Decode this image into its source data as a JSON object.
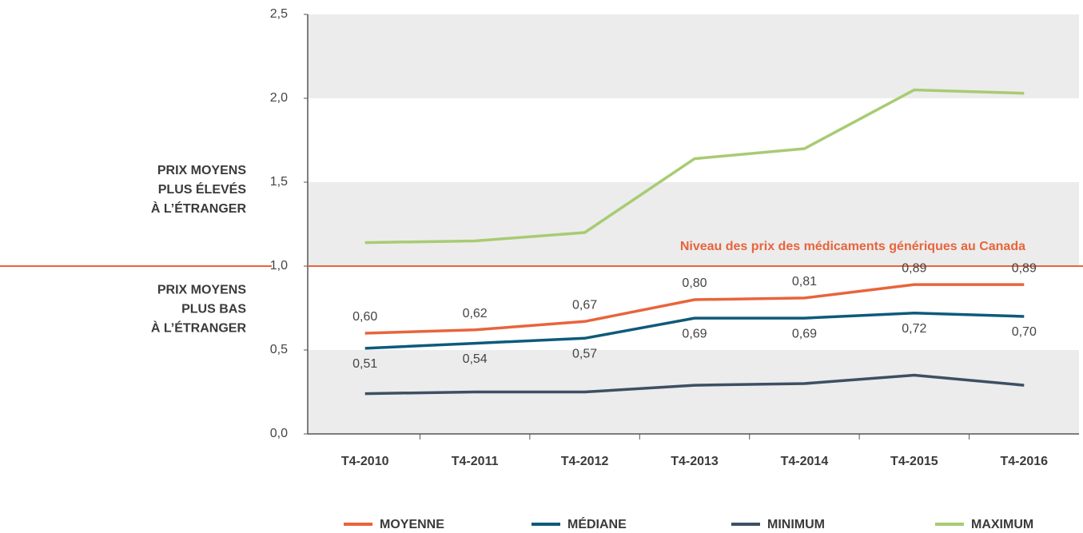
{
  "chart_data": {
    "type": "line",
    "categories": [
      "T4-2010",
      "T4-2011",
      "T4-2012",
      "T4-2013",
      "T4-2014",
      "T4-2015",
      "T4-2016"
    ],
    "series": [
      {
        "name": "MOYENNE",
        "color": "#e8643c",
        "values": [
          0.6,
          0.62,
          0.67,
          0.8,
          0.81,
          0.89,
          0.89
        ],
        "value_labels": [
          "0,60",
          "0,62",
          "0,67",
          "0,80",
          "0,81",
          "0,89",
          "0,89"
        ]
      },
      {
        "name": "MÉDIANE",
        "color": "#0e5a7a",
        "values": [
          0.51,
          0.54,
          0.57,
          0.69,
          0.69,
          0.72,
          0.7
        ],
        "value_labels": [
          "0,51",
          "0,54",
          "0,57",
          "0,69",
          "0,69",
          "0,72",
          "0,70"
        ]
      },
      {
        "name": "MINIMUM",
        "color": "#3d4f63",
        "values": [
          0.24,
          0.25,
          0.25,
          0.29,
          0.3,
          0.35,
          0.29
        ]
      },
      {
        "name": "MAXIMUM",
        "color": "#a8cb73",
        "values": [
          1.14,
          1.15,
          1.2,
          1.64,
          1.7,
          2.05,
          2.03
        ]
      }
    ],
    "ylim": [
      0,
      2.5
    ],
    "yticks": [
      {
        "value": 0,
        "label": "0,0"
      },
      {
        "value": 0.5,
        "label": "0,5"
      },
      {
        "value": 1,
        "label": "1,0"
      },
      {
        "value": 1.5,
        "label": "1,5"
      },
      {
        "value": 2,
        "label": "2,0"
      },
      {
        "value": 2.5,
        "label": "2,5"
      }
    ],
    "reference_line": {
      "value": 1,
      "label": "Niveau des prix des médicaments génériques au Canada",
      "color": "#e8643c"
    },
    "annotations": [
      {
        "lines": [
          "PRIX MOYENS",
          "PLUS ÉLEVÉS",
          "À L’ÉTRANGER"
        ]
      },
      {
        "lines": [
          "PRIX MOYENS",
          "PLUS BAS",
          "À L’ÉTRANGER"
        ]
      }
    ]
  }
}
